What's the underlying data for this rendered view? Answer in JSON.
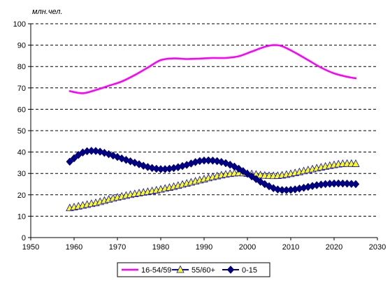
{
  "chart_data": {
    "type": "line",
    "ylabel": "млн.чел.",
    "xlim": [
      1950,
      2030
    ],
    "ylim": [
      0,
      100
    ],
    "xticks": [
      1950,
      1960,
      1970,
      1980,
      1990,
      2000,
      2010,
      2020,
      2030
    ],
    "yticks": [
      0,
      10,
      20,
      30,
      40,
      50,
      60,
      70,
      80,
      90,
      100
    ],
    "grid": "horizontal dashed",
    "legend_position": "bottom",
    "series": [
      {
        "name": "16-54/59",
        "color": "#ff00ff",
        "marker": "none",
        "x": [
          1959,
          1962,
          1965,
          1968,
          1971,
          1974,
          1977,
          1980,
          1983,
          1986,
          1989,
          1992,
          1995,
          1998,
          2001,
          2004,
          2006,
          2008,
          2011,
          2014,
          2017,
          2020,
          2023,
          2025
        ],
        "values": [
          68.5,
          67.5,
          69,
          71,
          73,
          76,
          79.5,
          83,
          83.8,
          83.5,
          83.7,
          84,
          84,
          84.8,
          87,
          89.2,
          90,
          89.5,
          86.5,
          83,
          79.5,
          76.8,
          75.2,
          74.5
        ]
      },
      {
        "name": "55/60+",
        "color": "#0000ff",
        "marker": "triangle",
        "marker_fill": "#ffff00",
        "x": [
          1959,
          1962,
          1965,
          1968,
          1971,
          1974,
          1977,
          1980,
          1983,
          1986,
          1989,
          1992,
          1995,
          1998,
          2001,
          2004,
          2007,
          2010,
          2013,
          2016,
          2019,
          2022,
          2025
        ],
        "values": [
          13.8,
          15,
          16.2,
          17.8,
          19.2,
          20.4,
          21.4,
          22.5,
          23.8,
          25.3,
          26.8,
          28.3,
          29.5,
          30.2,
          29.7,
          29,
          28.9,
          29.8,
          31.1,
          32.4,
          33.6,
          34.5,
          34.5
        ]
      },
      {
        "name": "0-15",
        "color": "#000080",
        "marker": "diamond",
        "x": [
          1959,
          1962,
          1965,
          1968,
          1971,
          1974,
          1977,
          1980,
          1983,
          1986,
          1989,
          1992,
          1995,
          1998,
          2001,
          2004,
          2007,
          2010,
          2013,
          2016,
          2019,
          2022,
          2025
        ],
        "values": [
          35.5,
          39.8,
          40.5,
          39,
          37,
          35,
          33,
          32,
          32.5,
          34,
          35.8,
          36,
          34.8,
          32.2,
          28.6,
          25,
          22.5,
          22.3,
          23.3,
          24.5,
          25.2,
          25.3,
          25
        ]
      }
    ]
  }
}
